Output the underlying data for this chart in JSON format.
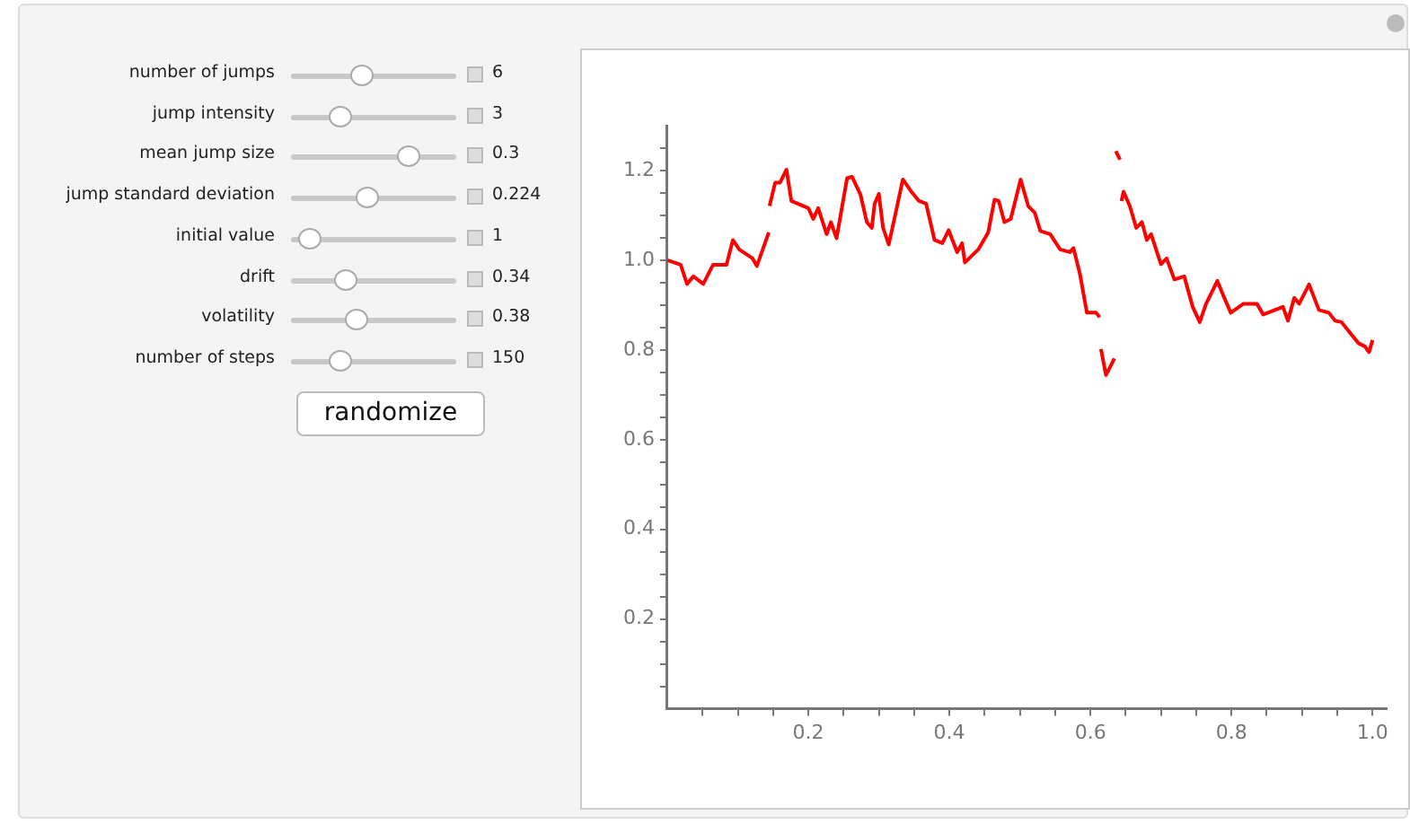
{
  "chart_data": {
    "type": "line",
    "annotations": [
      "number of jumps",
      "6",
      "jump intensity",
      "3",
      "mean jump size",
      "0.3",
      "jump standard deviation",
      "0.224",
      "initial value",
      "1",
      "drift",
      "0.34",
      "volatility",
      "0.38",
      "number of steps",
      "150",
      "randomize"
    ],
    "series": [
      {
        "color": "#ff0000",
        "x": [
          0,
          0.019,
          0.028,
          0.037,
          0.051,
          0.065,
          0.084,
          0.093,
          0.102,
          0.121,
          0.127,
          0.144
        ],
        "values": [
          1.0,
          0.99,
          0.947,
          0.964,
          0.947,
          0.99,
          0.99,
          1.045,
          1.024,
          1.004,
          0.987,
          1.062
        ]
      },
      {
        "color": "#ff0000",
        "x": [
          0.145,
          0.153,
          0.16,
          0.169,
          0.176,
          0.2,
          0.207,
          0.214,
          0.226,
          0.232,
          0.24,
          0.255,
          0.262,
          0.274,
          0.283,
          0.29,
          0.294,
          0.3,
          0.306,
          0.314,
          0.322,
          0.334,
          0.346,
          0.357,
          0.367,
          0.379,
          0.39,
          0.399,
          0.411,
          0.418,
          0.422,
          0.441,
          0.455,
          0.464,
          0.47,
          0.478,
          0.487,
          0.501,
          0.512,
          0.521,
          0.529,
          0.543,
          0.557,
          0.571,
          0.576,
          0.585,
          0.595,
          0.608,
          0.613
        ],
        "values": [
          1.121,
          1.173,
          1.173,
          1.202,
          1.132,
          1.116,
          1.092,
          1.116,
          1.058,
          1.085,
          1.049,
          1.183,
          1.186,
          1.146,
          1.085,
          1.072,
          1.126,
          1.148,
          1.072,
          1.035,
          1.092,
          1.18,
          1.153,
          1.132,
          1.126,
          1.045,
          1.038,
          1.067,
          1.018,
          1.038,
          0.995,
          1.024,
          1.062,
          1.135,
          1.132,
          1.085,
          1.092,
          1.18,
          1.12,
          1.106,
          1.065,
          1.058,
          1.024,
          1.018,
          1.027,
          0.97,
          0.883,
          0.883,
          0.873
        ]
      },
      {
        "color": "#ff0000",
        "x": [
          0.615,
          0.622,
          0.634
        ],
        "values": [
          0.802,
          0.744,
          0.781
        ]
      },
      {
        "color": "#ff0000",
        "x": [
          0.636,
          0.642
        ],
        "values": [
          1.243,
          1.224
        ]
      },
      {
        "color": "#ff0000",
        "x": [
          0.644,
          0.647,
          0.656,
          0.665,
          0.673,
          0.68,
          0.686,
          0.7,
          0.708,
          0.719,
          0.733,
          0.745,
          0.755,
          0.764,
          0.78,
          0.789,
          0.799,
          0.817,
          0.836,
          0.845,
          0.873,
          0.88,
          0.889,
          0.896,
          0.91,
          0.924,
          0.938,
          0.947,
          0.956,
          0.966,
          0.98,
          0.989,
          0.995,
          1.0
        ],
        "values": [
          1.132,
          1.153,
          1.12,
          1.072,
          1.085,
          1.045,
          1.058,
          0.991,
          1.004,
          0.957,
          0.964,
          0.896,
          0.862,
          0.903,
          0.954,
          0.919,
          0.883,
          0.903,
          0.903,
          0.879,
          0.896,
          0.865,
          0.916,
          0.903,
          0.946,
          0.889,
          0.883,
          0.865,
          0.862,
          0.842,
          0.815,
          0.808,
          0.795,
          0.822
        ]
      }
    ],
    "xlim": [
      0,
      1.02
    ],
    "xticks": [
      {
        "value": 0.05,
        "label": null
      },
      {
        "value": 0.1,
        "label": null
      },
      {
        "value": 0.15,
        "label": null
      },
      0.2,
      {
        "value": 0.25,
        "label": null
      },
      {
        "value": 0.3,
        "label": null
      },
      {
        "value": 0.35,
        "label": null
      },
      0.4,
      {
        "value": 0.45,
        "label": null
      },
      {
        "value": 0.5,
        "label": null
      },
      {
        "value": 0.55,
        "label": null
      },
      0.6,
      {
        "value": 0.65,
        "label": null
      },
      {
        "value": 0.7,
        "label": null
      },
      {
        "value": 0.75,
        "label": null
      },
      0.8,
      {
        "value": 0.85,
        "label": null
      },
      {
        "value": 0.9,
        "label": null
      },
      {
        "value": 0.95,
        "label": null
      },
      {
        "value": 1,
        "label": "1.0"
      }
    ],
    "ylim": [
      0,
      1.3
    ],
    "yticks": [
      {
        "value": 0.05,
        "label": null
      },
      {
        "value": 0.1,
        "label": null
      },
      {
        "value": 0.15,
        "label": null
      },
      0.2,
      {
        "value": 0.25,
        "label": null
      },
      {
        "value": 0.3,
        "label": null
      },
      {
        "value": 0.35,
        "label": null
      },
      0.4,
      {
        "value": 0.45,
        "label": null
      },
      {
        "value": 0.5,
        "label": null
      },
      {
        "value": 0.55,
        "label": null
      },
      0.6,
      {
        "value": 0.65,
        "label": null
      },
      {
        "value": 0.7,
        "label": null
      },
      {
        "value": 0.75,
        "label": null
      },
      0.8,
      {
        "value": 0.85,
        "label": null
      },
      {
        "value": 0.9,
        "label": null
      },
      {
        "value": 0.95,
        "label": null
      },
      {
        "value": 1,
        "label": "1.0"
      },
      {
        "value": 1.05,
        "label": null
      },
      {
        "value": 1.1,
        "label": null
      },
      {
        "value": 1.15,
        "label": null
      },
      1.2,
      {
        "value": 1.25,
        "label": null
      }
    ],
    "grid": false,
    "legend": false
  }
}
